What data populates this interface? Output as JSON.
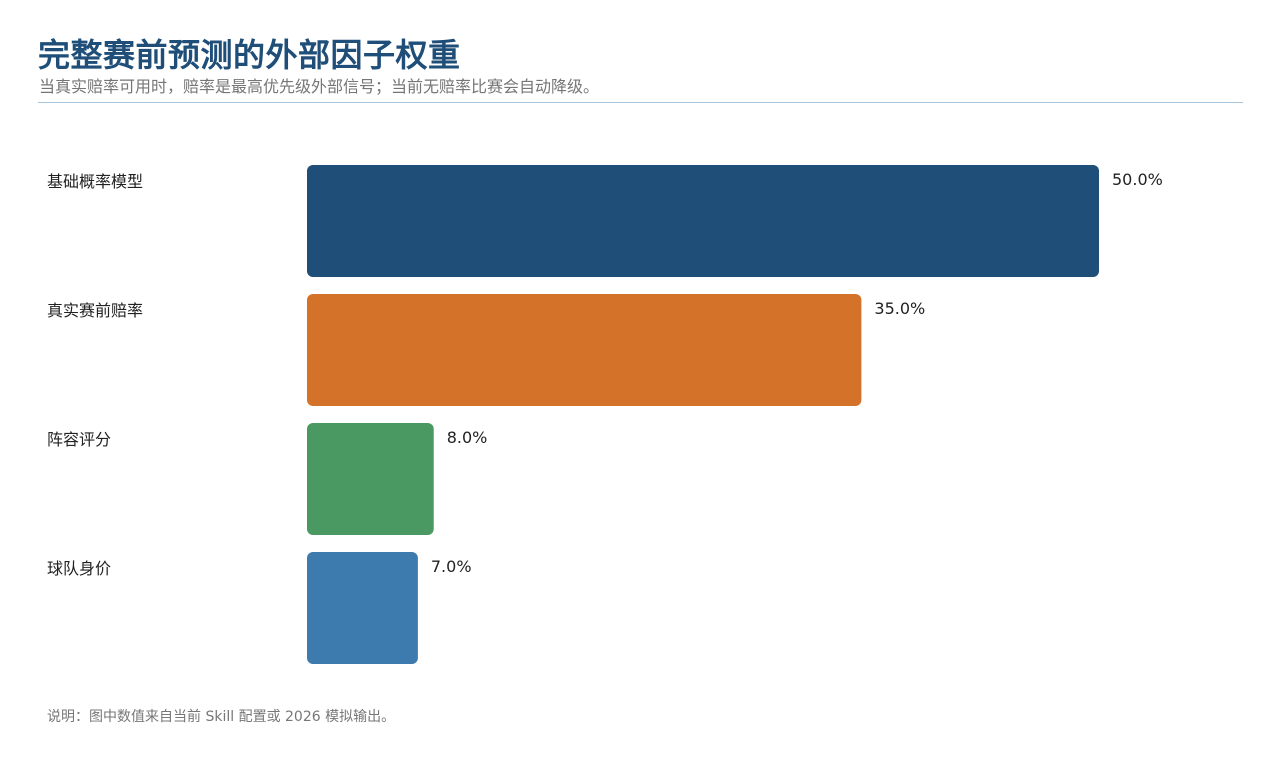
{
  "header": {
    "title": "完整赛前预测的外部因子权重",
    "subtitle": "当真实赔率可用时，赔率是最高优先级外部信号；当前无赔率比赛会自动降级。"
  },
  "footnote": "说明：图中数值来自当前 Skill 配置或 2026 模拟输出。",
  "chart_data": {
    "type": "bar",
    "orientation": "horizontal",
    "title": "完整赛前预测的外部因子权重",
    "subtitle": "当真实赔率可用时，赔率是最高优先级外部信号；当前无赔率比赛会自动降级。",
    "categories": [
      "基础概率模型",
      "真实赛前赔率",
      "阵容评分",
      "球队身价"
    ],
    "values": [
      50.0,
      35.0,
      8.0,
      7.0
    ],
    "value_labels": [
      "50.0%",
      "35.0%",
      "8.0%",
      "7.0%"
    ],
    "colors": [
      "#1f4e79",
      "#d4722a",
      "#4a9862",
      "#3d7aad"
    ],
    "xlim": [
      0,
      50
    ],
    "grid": false,
    "legend": "none"
  }
}
